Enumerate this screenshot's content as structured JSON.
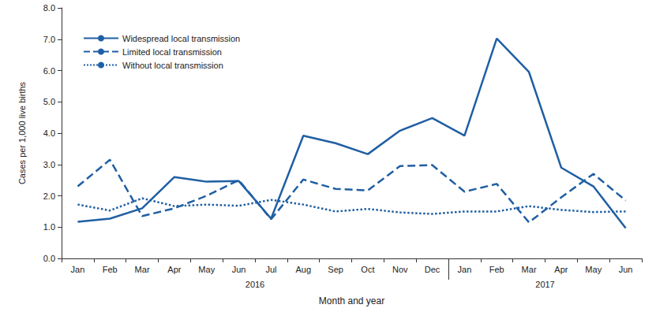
{
  "chart_data": {
    "type": "line",
    "x_label": "Month and year",
    "y_label": "Cases per 1,000 live births",
    "categories": [
      "Jan",
      "Feb",
      "Mar",
      "Apr",
      "May",
      "Jun",
      "Jul",
      "Aug",
      "Sep",
      "Oct",
      "Nov",
      "Dec",
      "Jan",
      "Feb",
      "Mar",
      "Apr",
      "May",
      "Jun"
    ],
    "category_groups": [
      {
        "name": "2016",
        "span": 12
      },
      {
        "name": "2017",
        "span": 6
      }
    ],
    "series": [
      {
        "name": "Widespread local transmission",
        "color": "#1f5fa3",
        "line_style": "solid",
        "values": [
          1.17,
          1.27,
          1.6,
          2.6,
          2.45,
          2.47,
          1.27,
          3.92,
          3.68,
          3.33,
          4.08,
          4.48,
          3.92,
          7.02,
          5.95,
          2.9,
          2.3,
          0.97
        ]
      },
      {
        "name": "Limited local transmission",
        "color": "#1f5fa3",
        "line_style": "dashed",
        "values": [
          2.3,
          3.15,
          1.35,
          1.6,
          2.0,
          2.5,
          1.25,
          2.52,
          2.22,
          2.17,
          2.95,
          2.98,
          2.13,
          2.38,
          1.15,
          1.95,
          2.7,
          1.85
        ]
      },
      {
        "name": "Without local transmission",
        "color": "#1f5fa3",
        "line_style": "dotted",
        "values": [
          1.72,
          1.53,
          1.92,
          1.67,
          1.72,
          1.68,
          1.87,
          1.72,
          1.5,
          1.58,
          1.47,
          1.42,
          1.5,
          1.5,
          1.67,
          1.55,
          1.48,
          1.5
        ]
      }
    ],
    "ylim": [
      0,
      8
    ],
    "yticks": [
      {
        "value": 0,
        "label": "0.0"
      },
      {
        "value": 1,
        "label": "1.0"
      },
      {
        "value": 2,
        "label": "2.0"
      },
      {
        "value": 3,
        "label": "3.0"
      },
      {
        "value": 4,
        "label": "4.0"
      },
      {
        "value": 5,
        "label": "5.0"
      },
      {
        "value": 6,
        "label": "6.0"
      },
      {
        "value": 7,
        "label": "7.0"
      },
      {
        "value": 8,
        "label": "8.0"
      }
    ],
    "grid": false,
    "legend": "upper left"
  }
}
